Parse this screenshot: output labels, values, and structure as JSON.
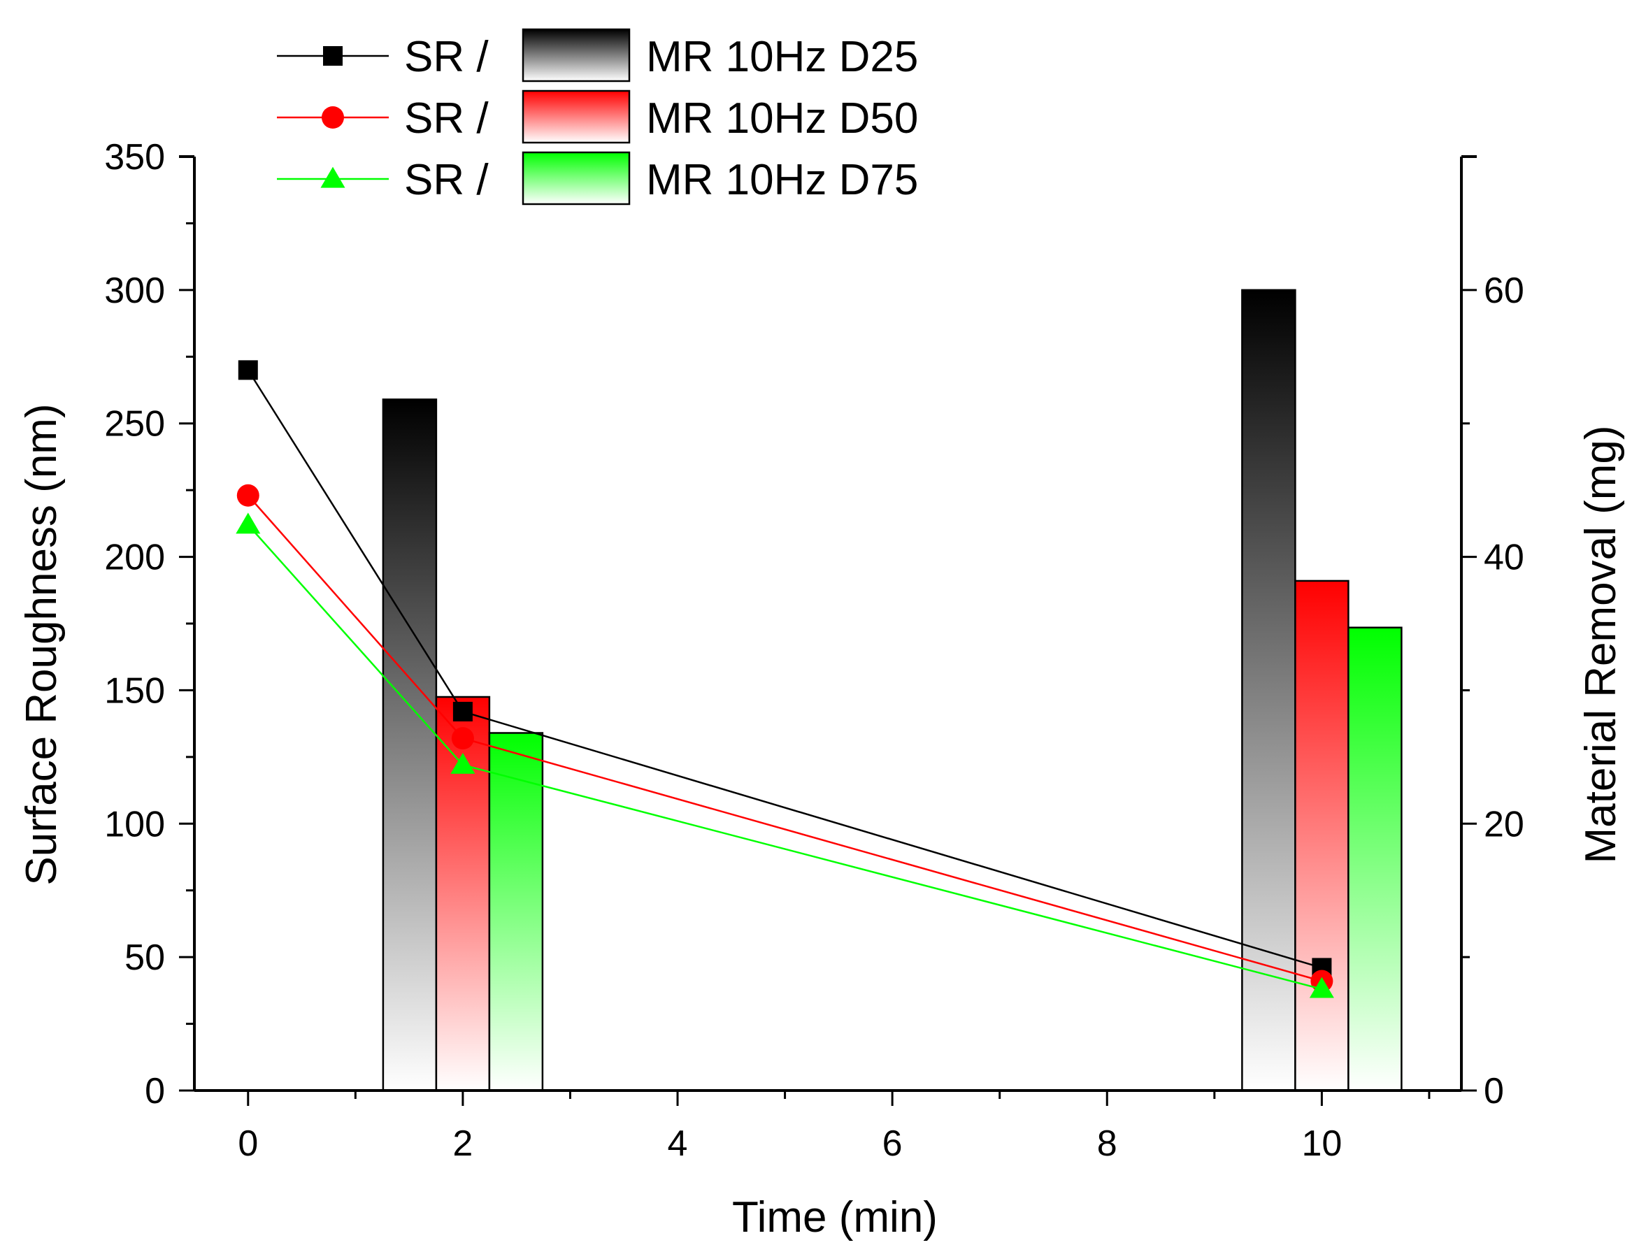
{
  "chart_data": {
    "type": "bar",
    "title": "",
    "xlabel": "Time (min)",
    "ylabel_left": "Surface Roughness (nm)",
    "ylabel_right": "Material Removal (mg)",
    "xlim": [
      -0.5,
      11.3
    ],
    "ylim_left": [
      0,
      350
    ],
    "ylim_right": [
      0,
      70
    ],
    "x_ticks": [
      0,
      2,
      4,
      6,
      8,
      10
    ],
    "y_left_ticks": [
      0,
      50,
      100,
      150,
      200,
      250,
      300,
      350
    ],
    "y_right_ticks": [
      0,
      20,
      40,
      60
    ],
    "grid": false,
    "legend_position": "top-left",
    "legend_separator": "SR /",
    "bar_categories": [
      2,
      10
    ],
    "series": [
      {
        "name": "MR 10Hz D25",
        "color": "#000000",
        "marker": "square",
        "sr_x": [
          0,
          2,
          10
        ],
        "sr_values": [
          270,
          142,
          46
        ],
        "mr_values": [
          51.8,
          60.0
        ]
      },
      {
        "name": "MR 10Hz D50",
        "color": "#ff0000",
        "marker": "circle",
        "sr_x": [
          0,
          2,
          10
        ],
        "sr_values": [
          223,
          132,
          41
        ],
        "mr_values": [
          29.5,
          38.2
        ]
      },
      {
        "name": "MR 10Hz D75",
        "color": "#00ff00",
        "marker": "triangle",
        "sr_x": [
          0,
          2,
          10
        ],
        "sr_values": [
          212,
          122,
          38
        ],
        "mr_values": [
          26.8,
          34.7
        ]
      }
    ]
  }
}
